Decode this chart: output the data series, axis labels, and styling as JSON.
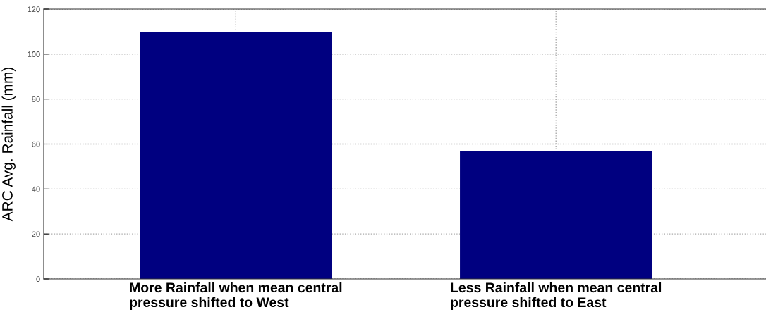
{
  "chart_data": {
    "type": "bar",
    "ylabel": "ARC Avg. Rainfall (mm)",
    "categories": [
      "More Rainfall when mean central\npressure shifted to West",
      "Less Rainfall when mean central\npressure shifted to East"
    ],
    "values": [
      110,
      57
    ],
    "color": "#000080",
    "ylim": [
      0,
      120
    ],
    "yticks": [
      0,
      20,
      40,
      60,
      80,
      100,
      120
    ],
    "grid": true
  }
}
